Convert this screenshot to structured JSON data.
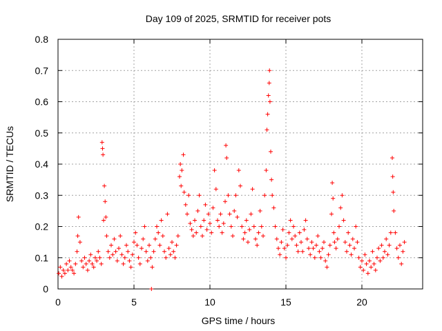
{
  "chart_data": {
    "type": "scatter",
    "title": "Day 109 of 2025, SRMTID for receiver pots",
    "xlabel": "GPS time / hours",
    "ylabel": "SRMTID / TECUs",
    "xlim": [
      0,
      24
    ],
    "ylim": [
      0,
      0.8
    ],
    "xticks": [
      0,
      5,
      10,
      15,
      20
    ],
    "yticks": [
      0,
      0.1,
      0.2,
      0.3,
      0.4,
      0.5,
      0.6,
      0.7,
      0.8
    ],
    "xtick_labels": [
      "0",
      "5",
      "10",
      "15",
      "20"
    ],
    "ytick_labels": [
      "0",
      "0.1",
      "0.2",
      "0.3",
      "0.4",
      "0.5",
      "0.6",
      "0.7",
      "0.8"
    ],
    "grid": true,
    "marker": "+",
    "marker_color": "#ff0000",
    "x_data_range": [
      0,
      22.8
    ],
    "series": [
      {
        "name": "SRMTID",
        "points": [
          [
            0.05,
            0.05
          ],
          [
            0.15,
            0.07
          ],
          [
            0.25,
            0.04
          ],
          [
            0.35,
            0.06
          ],
          [
            0.45,
            0.05
          ],
          [
            0.55,
            0.08
          ],
          [
            0.65,
            0.06
          ],
          [
            0.75,
            0.09
          ],
          [
            0.85,
            0.07
          ],
          [
            0.95,
            0.06
          ],
          [
            1.05,
            0.05
          ],
          [
            1.15,
            0.08
          ],
          [
            1.25,
            0.12
          ],
          [
            1.3,
            0.17
          ],
          [
            1.35,
            0.23
          ],
          [
            1.45,
            0.15
          ],
          [
            1.55,
            0.09
          ],
          [
            1.65,
            0.07
          ],
          [
            1.75,
            0.1
          ],
          [
            1.85,
            0.08
          ],
          [
            1.95,
            0.06
          ],
          [
            2.05,
            0.09
          ],
          [
            2.15,
            0.11
          ],
          [
            2.25,
            0.08
          ],
          [
            2.35,
            0.07
          ],
          [
            2.45,
            0.1
          ],
          [
            2.55,
            0.09
          ],
          [
            2.65,
            0.12
          ],
          [
            2.75,
            0.1
          ],
          [
            2.85,
            0.08
          ],
          [
            2.9,
            0.47
          ],
          [
            2.93,
            0.45
          ],
          [
            2.96,
            0.43
          ],
          [
            3.0,
            0.22
          ],
          [
            3.05,
            0.33
          ],
          [
            3.1,
            0.28
          ],
          [
            3.15,
            0.23
          ],
          [
            3.2,
            0.17
          ],
          [
            3.3,
            0.12
          ],
          [
            3.4,
            0.1
          ],
          [
            3.5,
            0.14
          ],
          [
            3.6,
            0.11
          ],
          [
            3.7,
            0.16
          ],
          [
            3.8,
            0.12
          ],
          [
            3.9,
            0.09
          ],
          [
            4.0,
            0.13
          ],
          [
            4.1,
            0.17
          ],
          [
            4.2,
            0.11
          ],
          [
            4.3,
            0.08
          ],
          [
            4.4,
            0.1
          ],
          [
            4.5,
            0.14
          ],
          [
            4.6,
            0.12
          ],
          [
            4.7,
            0.09
          ],
          [
            4.8,
            0.07
          ],
          [
            4.9,
            0.11
          ],
          [
            5.0,
            0.15
          ],
          [
            5.1,
            0.18
          ],
          [
            5.2,
            0.14
          ],
          [
            5.3,
            0.1
          ],
          [
            5.4,
            0.08
          ],
          [
            5.5,
            0.13
          ],
          [
            5.6,
            0.16
          ],
          [
            5.7,
            0.2
          ],
          [
            5.8,
            0.12
          ],
          [
            5.9,
            0.09
          ],
          [
            6.0,
            0.14
          ],
          [
            6.1,
            0.1
          ],
          [
            6.15,
            0.0
          ],
          [
            6.2,
            0.07
          ],
          [
            6.3,
            0.12
          ],
          [
            6.4,
            0.16
          ],
          [
            6.5,
            0.2
          ],
          [
            6.6,
            0.18
          ],
          [
            6.7,
            0.14
          ],
          [
            6.8,
            0.22
          ],
          [
            6.9,
            0.17
          ],
          [
            7.0,
            0.12
          ],
          [
            7.1,
            0.1
          ],
          [
            7.2,
            0.24
          ],
          [
            7.3,
            0.13
          ],
          [
            7.4,
            0.11
          ],
          [
            7.5,
            0.15
          ],
          [
            7.6,
            0.12
          ],
          [
            7.7,
            0.1
          ],
          [
            7.8,
            0.14
          ],
          [
            7.9,
            0.17
          ],
          [
            8.0,
            0.36
          ],
          [
            8.05,
            0.4
          ],
          [
            8.1,
            0.33
          ],
          [
            8.15,
            0.38
          ],
          [
            8.25,
            0.43
          ],
          [
            8.3,
            0.31
          ],
          [
            8.4,
            0.27
          ],
          [
            8.5,
            0.24
          ],
          [
            8.6,
            0.3
          ],
          [
            8.7,
            0.21
          ],
          [
            8.8,
            0.19
          ],
          [
            8.9,
            0.17
          ],
          [
            9.0,
            0.22
          ],
          [
            9.1,
            0.18
          ],
          [
            9.2,
            0.25
          ],
          [
            9.3,
            0.3
          ],
          [
            9.4,
            0.2
          ],
          [
            9.5,
            0.17
          ],
          [
            9.6,
            0.22
          ],
          [
            9.7,
            0.27
          ],
          [
            9.8,
            0.19
          ],
          [
            9.9,
            0.24
          ],
          [
            10.0,
            0.21
          ],
          [
            10.1,
            0.18
          ],
          [
            10.2,
            0.26
          ],
          [
            10.3,
            0.38
          ],
          [
            10.4,
            0.32
          ],
          [
            10.5,
            0.22
          ],
          [
            10.6,
            0.2
          ],
          [
            10.7,
            0.24
          ],
          [
            10.8,
            0.18
          ],
          [
            10.9,
            0.21
          ],
          [
            11.0,
            0.28
          ],
          [
            11.05,
            0.46
          ],
          [
            11.1,
            0.42
          ],
          [
            11.2,
            0.3
          ],
          [
            11.3,
            0.24
          ],
          [
            11.4,
            0.2
          ],
          [
            11.5,
            0.17
          ],
          [
            11.6,
            0.25
          ],
          [
            11.7,
            0.3
          ],
          [
            11.8,
            0.23
          ],
          [
            11.9,
            0.38
          ],
          [
            12.0,
            0.33
          ],
          [
            12.1,
            0.2
          ],
          [
            12.2,
            0.16
          ],
          [
            12.3,
            0.18
          ],
          [
            12.4,
            0.22
          ],
          [
            12.5,
            0.15
          ],
          [
            12.6,
            0.19
          ],
          [
            12.7,
            0.24
          ],
          [
            12.8,
            0.32
          ],
          [
            12.9,
            0.2
          ],
          [
            13.0,
            0.16
          ],
          [
            13.1,
            0.14
          ],
          [
            13.2,
            0.18
          ],
          [
            13.3,
            0.25
          ],
          [
            13.4,
            0.2
          ],
          [
            13.5,
            0.17
          ],
          [
            13.6,
            0.3
          ],
          [
            13.7,
            0.38
          ],
          [
            13.75,
            0.51
          ],
          [
            13.8,
            0.56
          ],
          [
            13.85,
            0.62
          ],
          [
            13.9,
            0.66
          ],
          [
            13.92,
            0.7
          ],
          [
            13.95,
            0.6
          ],
          [
            14.0,
            0.44
          ],
          [
            14.05,
            0.35
          ],
          [
            14.1,
            0.3
          ],
          [
            14.2,
            0.26
          ],
          [
            14.3,
            0.2
          ],
          [
            14.4,
            0.16
          ],
          [
            14.5,
            0.13
          ],
          [
            14.6,
            0.11
          ],
          [
            14.7,
            0.15
          ],
          [
            14.8,
            0.19
          ],
          [
            14.9,
            0.13
          ],
          [
            15.0,
            0.1
          ],
          [
            15.1,
            0.14
          ],
          [
            15.2,
            0.18
          ],
          [
            15.3,
            0.22
          ],
          [
            15.4,
            0.16
          ],
          [
            15.5,
            0.2
          ],
          [
            15.6,
            0.17
          ],
          [
            15.7,
            0.14
          ],
          [
            15.8,
            0.12
          ],
          [
            15.9,
            0.18
          ],
          [
            16.0,
            0.15
          ],
          [
            16.1,
            0.12
          ],
          [
            16.2,
            0.19
          ],
          [
            16.3,
            0.22
          ],
          [
            16.4,
            0.16
          ],
          [
            16.5,
            0.13
          ],
          [
            16.6,
            0.11
          ],
          [
            16.7,
            0.15
          ],
          [
            16.8,
            0.13
          ],
          [
            16.9,
            0.1
          ],
          [
            17.0,
            0.14
          ],
          [
            17.1,
            0.17
          ],
          [
            17.2,
            0.12
          ],
          [
            17.3,
            0.1
          ],
          [
            17.4,
            0.13
          ],
          [
            17.5,
            0.15
          ],
          [
            17.6,
            0.09
          ],
          [
            17.7,
            0.07
          ],
          [
            17.8,
            0.11
          ],
          [
            17.9,
            0.14
          ],
          [
            18.0,
            0.24
          ],
          [
            18.05,
            0.34
          ],
          [
            18.1,
            0.29
          ],
          [
            18.15,
            0.18
          ],
          [
            18.2,
            0.15
          ],
          [
            18.3,
            0.13
          ],
          [
            18.4,
            0.16
          ],
          [
            18.5,
            0.2
          ],
          [
            18.6,
            0.26
          ],
          [
            18.7,
            0.3
          ],
          [
            18.8,
            0.22
          ],
          [
            18.9,
            0.15
          ],
          [
            19.0,
            0.12
          ],
          [
            19.1,
            0.18
          ],
          [
            19.2,
            0.14
          ],
          [
            19.3,
            0.11
          ],
          [
            19.4,
            0.16
          ],
          [
            19.5,
            0.13
          ],
          [
            19.6,
            0.2
          ],
          [
            19.7,
            0.15
          ],
          [
            19.8,
            0.1
          ],
          [
            19.9,
            0.07
          ],
          [
            20.0,
            0.09
          ],
          [
            20.1,
            0.06
          ],
          [
            20.2,
            0.11
          ],
          [
            20.3,
            0.08
          ],
          [
            20.4,
            0.05
          ],
          [
            20.5,
            0.09
          ],
          [
            20.6,
            0.07
          ],
          [
            20.7,
            0.12
          ],
          [
            20.8,
            0.08
          ],
          [
            20.9,
            0.06
          ],
          [
            21.0,
            0.1
          ],
          [
            21.1,
            0.13
          ],
          [
            21.2,
            0.09
          ],
          [
            21.3,
            0.14
          ],
          [
            21.4,
            0.1
          ],
          [
            21.5,
            0.12
          ],
          [
            21.6,
            0.16
          ],
          [
            21.7,
            0.11
          ],
          [
            21.8,
            0.14
          ],
          [
            21.9,
            0.18
          ],
          [
            22.0,
            0.42
          ],
          [
            22.03,
            0.36
          ],
          [
            22.06,
            0.31
          ],
          [
            22.1,
            0.25
          ],
          [
            22.2,
            0.18
          ],
          [
            22.3,
            0.13
          ],
          [
            22.4,
            0.1
          ],
          [
            22.5,
            0.14
          ],
          [
            22.6,
            0.08
          ],
          [
            22.7,
            0.12
          ],
          [
            22.8,
            0.15
          ]
        ]
      }
    ]
  }
}
